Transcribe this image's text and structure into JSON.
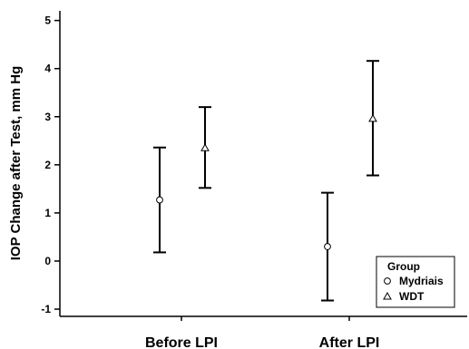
{
  "chart_data": {
    "type": "scatter",
    "ylabel": "IOP Change after Test, mm Hg",
    "xlabel": "",
    "categories": [
      "Before LPI",
      "After LPI"
    ],
    "ylim": [
      -1.15,
      5.2
    ],
    "yticks": [
      -1,
      0,
      1,
      2,
      3,
      4,
      5
    ],
    "grid": false,
    "legend": {
      "title": "Group",
      "position": "bottom-right"
    },
    "series": [
      {
        "name": "Mydriais",
        "marker": "circle",
        "points": [
          {
            "category": "Before LPI",
            "y": 1.27,
            "lower": 0.18,
            "upper": 2.36
          },
          {
            "category": "After LPI",
            "y": 0.3,
            "lower": -0.82,
            "upper": 1.42
          }
        ]
      },
      {
        "name": "WDT",
        "marker": "triangle",
        "points": [
          {
            "category": "Before LPI",
            "y": 2.35,
            "lower": 1.52,
            "upper": 3.2
          },
          {
            "category": "After LPI",
            "y": 2.96,
            "lower": 1.78,
            "upper": 4.16
          }
        ]
      }
    ]
  }
}
